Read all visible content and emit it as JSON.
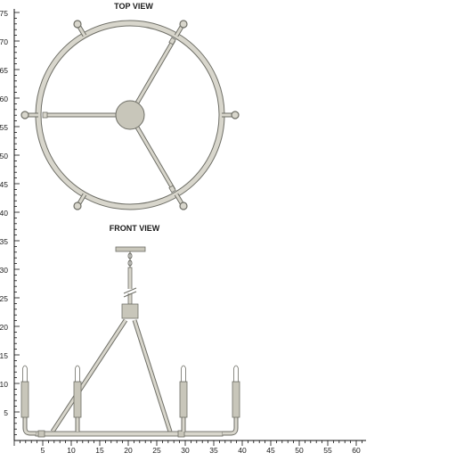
{
  "views": {
    "top_title": "TOP VIEW",
    "front_title": "FRONT VIEW"
  },
  "scale": {
    "y_ticks": [
      "75",
      "70",
      "65",
      "60",
      "55",
      "50",
      "45",
      "40",
      "35",
      "30",
      "25",
      "20",
      "15",
      "10",
      "5"
    ],
    "x_ticks": [
      "5",
      "10",
      "15",
      "20",
      "25",
      "30",
      "35",
      "40",
      "45",
      "50",
      "55",
      "60"
    ]
  },
  "colors": {
    "body": "#d8d6cc",
    "outline": "#6e6e66",
    "ruler": "#111111"
  }
}
